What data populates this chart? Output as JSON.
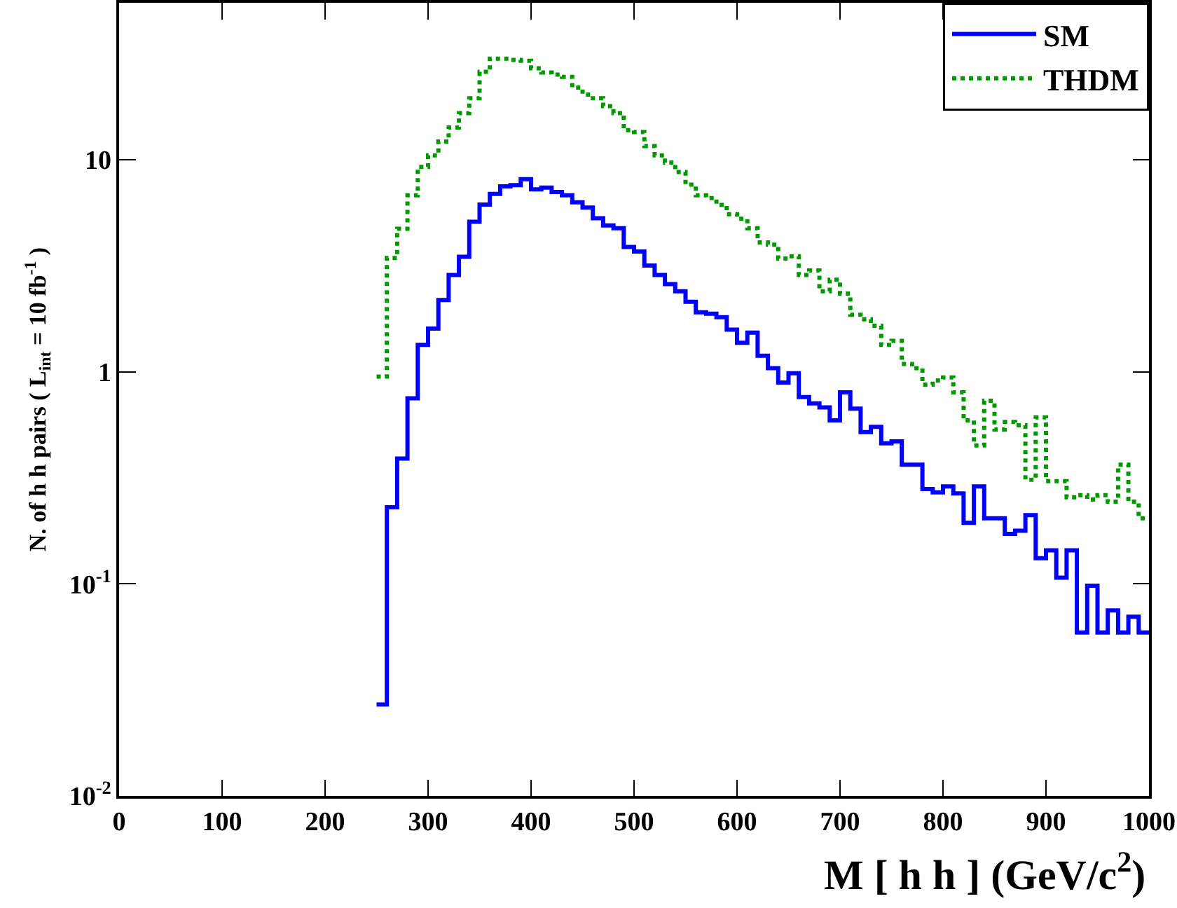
{
  "chart_data": {
    "type": "histogram",
    "xlabel": "M [ h h ] (GeV/c$^{2}$)",
    "ylabel": "N. of h h pairs ( L$_{int}$ = 10 fb$^{-1}$ )",
    "bins": [
      250,
      260,
      270,
      280,
      290,
      300,
      310,
      320,
      330,
      340,
      350,
      360,
      370,
      380,
      390,
      400,
      410,
      420,
      430,
      440,
      450,
      460,
      470,
      480,
      490,
      500,
      510,
      520,
      530,
      540,
      550,
      560,
      570,
      580,
      590,
      600,
      610,
      620,
      630,
      640,
      650,
      660,
      670,
      680,
      690,
      700,
      710,
      720,
      730,
      740,
      750,
      760,
      770,
      780,
      790,
      800,
      810,
      820,
      830,
      840,
      850,
      860,
      870,
      880,
      890,
      900,
      910,
      920,
      930,
      940,
      950,
      960,
      970,
      980,
      990,
      1000
    ],
    "series": [
      {
        "name": "SM",
        "color": "#0000ff",
        "line_style": "solid",
        "values": [
          0.027,
          0.23,
          0.39,
          0.75,
          1.34,
          1.6,
          2.18,
          2.86,
          3.49,
          5.1,
          6.15,
          6.9,
          7.5,
          7.6,
          8.1,
          7.25,
          7.4,
          7.05,
          6.8,
          6.3,
          5.95,
          5.3,
          4.9,
          4.76,
          3.88,
          3.69,
          3.17,
          2.86,
          2.59,
          2.4,
          2.14,
          1.91,
          1.88,
          1.81,
          1.58,
          1.37,
          1.53,
          1.19,
          1.04,
          0.89,
          0.985,
          0.76,
          0.71,
          0.68,
          0.59,
          0.8,
          0.67,
          0.52,
          0.55,
          0.46,
          0.47,
          0.365,
          0.365,
          0.28,
          0.27,
          0.288,
          0.267,
          0.194,
          0.288,
          0.204,
          0.204,
          0.172,
          0.178,
          0.211,
          0.132,
          0.144,
          0.107,
          0.144,
          0.059,
          0.098,
          0.059,
          0.075,
          0.059,
          0.07,
          0.059
        ]
      },
      {
        "name": "THDM",
        "color": "#009900",
        "line_style": "dotted",
        "values": [
          0.95,
          3.44,
          4.73,
          6.8,
          9.25,
          10.5,
          12.2,
          14.2,
          16.6,
          19.5,
          26,
          30,
          30,
          29.6,
          29.3,
          27,
          25.8,
          25.2,
          24.6,
          21.9,
          20.3,
          19.5,
          17.9,
          16.6,
          13.8,
          13.5,
          11.6,
          10.5,
          9.7,
          8.75,
          7.63,
          6.8,
          6.6,
          6.13,
          5.54,
          5.27,
          4.76,
          4.08,
          3.98,
          3.42,
          3.51,
          2.86,
          3.01,
          2.4,
          2.72,
          2.34,
          1.86,
          1.77,
          1.65,
          1.34,
          1.4,
          1.09,
          1.04,
          0.87,
          0.91,
          0.94,
          0.8,
          0.59,
          0.45,
          0.73,
          0.535,
          0.58,
          0.56,
          0.31,
          0.61,
          0.305,
          0.305,
          0.256,
          0.262,
          0.25,
          0.262,
          0.244,
          0.365,
          0.244,
          0.204
        ]
      }
    ],
    "xlim": [
      0,
      1000
    ],
    "xticks": [
      0,
      100,
      200,
      300,
      400,
      500,
      600,
      700,
      800,
      900,
      1000
    ],
    "ylim": [
      0.01,
      55
    ],
    "yticks": [
      {
        "value": 0.01,
        "label": "10$^{-2}$"
      },
      {
        "value": 0.1,
        "label": "10$^{-1}$"
      },
      1,
      10
    ],
    "log": true,
    "grid": false,
    "legend": "top right"
  }
}
